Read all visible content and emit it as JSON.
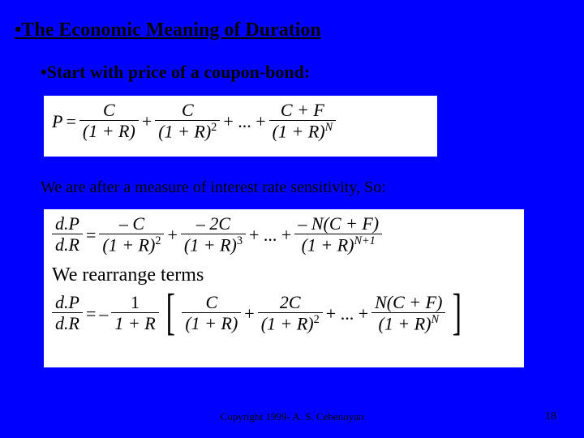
{
  "slide": {
    "heading": "•The Economic Meaning of Duration",
    "subheading": "•Start with price of a coupon-bond:",
    "mid_sentence": "We are after a measure of interest rate sensitivity, So:",
    "rearrange_text": "We rearrange terms",
    "footer": "Copyright 1999- A. S. Cebenoyan",
    "page_number": "18"
  },
  "bg_color": "#0000fe",
  "text_color": "#000000",
  "eq_bg": "#ffffff",
  "eq1": {
    "lhs": "P",
    "eq": "=",
    "plus": "+",
    "ellipsis": "+ ... +",
    "t1_num": "C",
    "t1_den_base": "(1 + R)",
    "t2_num": "C",
    "t2_den_base": "(1 + R)",
    "t2_exp": "2",
    "tn_num": "C + F",
    "tn_den_base": "(1 + R)",
    "tn_exp": "N"
  },
  "eq2": {
    "lhs_num": "d.P",
    "lhs_den": "d.R",
    "eq": "=",
    "plus": "+",
    "ellipsis": "+ ... +",
    "t1_num": "– C",
    "t1_den_base": "(1 + R)",
    "t1_exp": "2",
    "t2_num": "– 2C",
    "t2_den_base": "(1 + R)",
    "t2_exp": "3",
    "tn_num": "– N(C + F)",
    "tn_den_base": "(1 + R)",
    "tn_exp": "N+1"
  },
  "eq3": {
    "lhs_num": "d.P",
    "lhs_den": "d.R",
    "eq": "=",
    "neg": "–",
    "coef_num": "1",
    "coef_den": "1 + R",
    "plus": "+",
    "ellipsis": "+ ... +",
    "t1_num": "C",
    "t1_den_base": "(1 + R)",
    "t2_num": "2C",
    "t2_den_base": "(1 + R)",
    "t2_exp": "2",
    "tn_num": "N(C + F)",
    "tn_den_base": "(1 + R)",
    "tn_exp": "N"
  }
}
